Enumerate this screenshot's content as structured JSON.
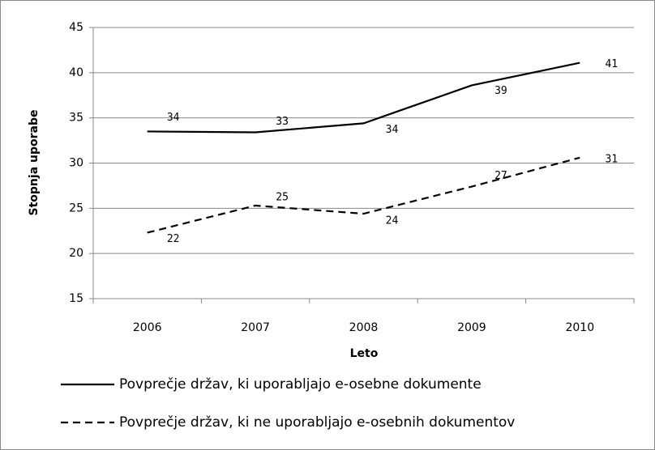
{
  "chart_data": {
    "type": "line",
    "x_label": "Leto",
    "y_label": "Stopnja uporabe",
    "categories": [
      "2006",
      "2007",
      "2008",
      "2009",
      "2010"
    ],
    "series": [
      {
        "name": "Povprečje držav, ki uporabljajo e-osebne dokumente",
        "color": "#000000",
        "line_style": "solid",
        "values": [
          33.5,
          33.4,
          34.4,
          38.6,
          41.1
        ],
        "value_labels": [
          "34",
          "33",
          "34",
          "39",
          "41"
        ]
      },
      {
        "name": "Povprečje držav, ki ne uporabljajo e-osebnih dokumentov",
        "color": "#000000",
        "line_style": "dashed",
        "values": [
          22.3,
          25.3,
          24.4,
          27.4,
          30.6
        ],
        "value_labels": [
          "22",
          "25",
          "24",
          "27",
          "31"
        ]
      }
    ],
    "ylim": [
      15,
      45
    ],
    "yticks": [
      15,
      20,
      25,
      30,
      35,
      40,
      45
    ],
    "grid": true
  }
}
